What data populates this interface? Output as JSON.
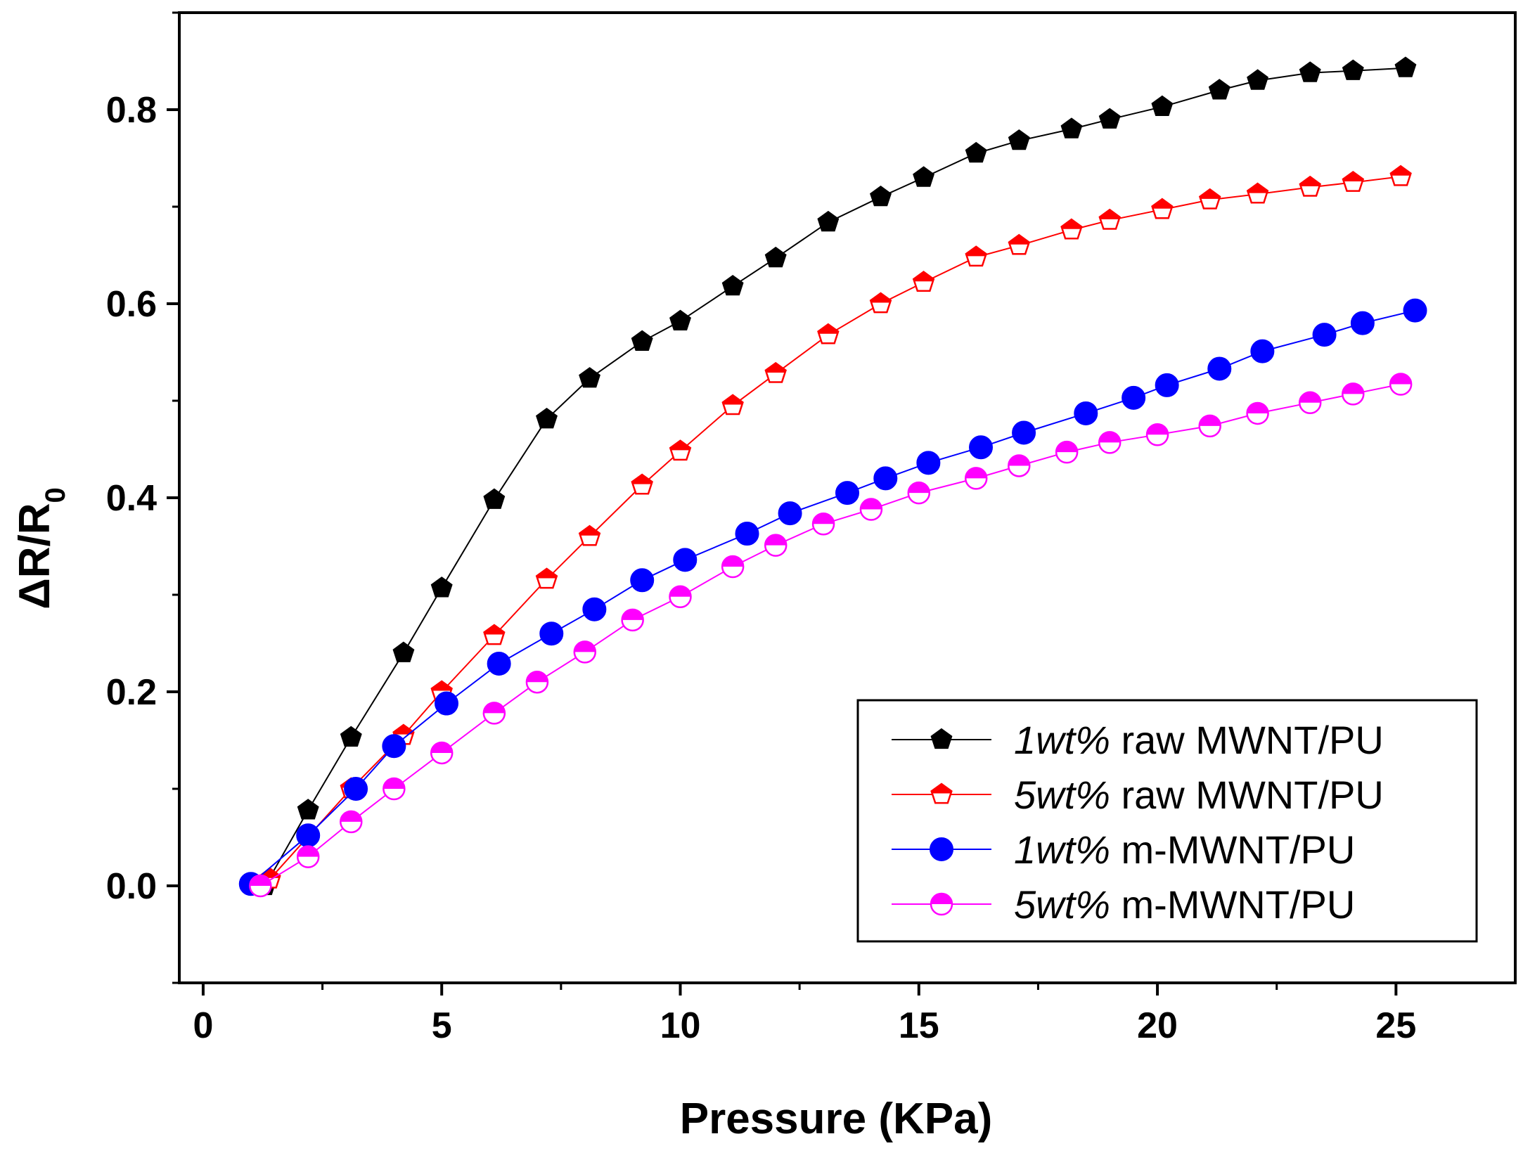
{
  "chart_data": {
    "type": "line",
    "title": "",
    "xlabel": "Pressure (KPa)",
    "ylabel_main": "ΔR/R",
    "ylabel_sub": "0",
    "xlim": [
      -0.5,
      27.5
    ],
    "ylim": [
      -0.1,
      0.9
    ],
    "x_ticks": [
      0,
      5,
      10,
      15,
      20,
      25
    ],
    "x_tick_labels": [
      "0",
      "5",
      "10",
      "15",
      "20",
      "25"
    ],
    "y_ticks": [
      0.0,
      0.2,
      0.4,
      0.6,
      0.8
    ],
    "y_tick_labels": [
      "0.0",
      "0.2",
      "0.4",
      "0.6",
      "0.8"
    ],
    "grid": false,
    "legend_position": "bottom-right",
    "series": [
      {
        "name": "1wt% raw MWNT/PU",
        "legend_em": "1wt%",
        "legend_rest": " raw MWNT/PU",
        "color": "#000000",
        "marker": "pentagon-filled",
        "x": [
          1.3,
          2.2,
          3.1,
          4.2,
          5.0,
          6.1,
          7.2,
          8.1,
          9.2,
          10.0,
          11.1,
          12.0,
          13.1,
          14.2,
          15.1,
          16.2,
          17.1,
          18.2,
          19.0,
          20.1,
          21.3,
          22.1,
          23.2,
          24.1,
          25.2
        ],
        "y": [
          0.0,
          0.078,
          0.153,
          0.24,
          0.307,
          0.398,
          0.481,
          0.523,
          0.561,
          0.582,
          0.618,
          0.647,
          0.684,
          0.71,
          0.73,
          0.755,
          0.768,
          0.78,
          0.79,
          0.803,
          0.82,
          0.83,
          0.838,
          0.84,
          0.843
        ]
      },
      {
        "name": "5wt% raw MWNT/PU",
        "legend_em": "5wt%",
        "legend_rest": " raw MWNT/PU",
        "color": "#ff0000",
        "marker": "pentagon-half",
        "x": [
          1.4,
          3.1,
          4.2,
          5.0,
          6.1,
          7.2,
          8.1,
          9.2,
          10.0,
          11.1,
          12.0,
          13.1,
          14.2,
          15.1,
          16.2,
          17.1,
          18.2,
          19.0,
          20.1,
          21.1,
          22.1,
          23.2,
          24.1,
          25.1
        ],
        "y": [
          0.007,
          0.1,
          0.155,
          0.2,
          0.258,
          0.316,
          0.36,
          0.413,
          0.448,
          0.495,
          0.528,
          0.568,
          0.6,
          0.622,
          0.648,
          0.66,
          0.676,
          0.686,
          0.697,
          0.707,
          0.713,
          0.72,
          0.725,
          0.731
        ]
      },
      {
        "name": "1wt% m-MWNT/PU",
        "legend_em": "1wt%",
        "legend_rest": " m-MWNT/PU",
        "color": "#0000ff",
        "marker": "circle-filled",
        "x": [
          1.0,
          2.2,
          3.2,
          4.0,
          5.1,
          6.2,
          7.3,
          8.2,
          9.2,
          10.1,
          11.4,
          12.3,
          13.5,
          14.3,
          15.2,
          16.3,
          17.2,
          18.5,
          19.5,
          20.2,
          21.3,
          22.2,
          23.5,
          24.3,
          25.4
        ],
        "y": [
          0.002,
          0.052,
          0.1,
          0.144,
          0.188,
          0.229,
          0.26,
          0.285,
          0.315,
          0.336,
          0.363,
          0.384,
          0.405,
          0.42,
          0.436,
          0.452,
          0.467,
          0.487,
          0.503,
          0.516,
          0.533,
          0.551,
          0.568,
          0.58,
          0.593
        ]
      },
      {
        "name": "5wt% m-MWNT/PU",
        "legend_em": "5wt%",
        "legend_rest": " m-MWNT/PU",
        "color": "#ff00ff",
        "marker": "circle-half",
        "x": [
          1.2,
          2.2,
          3.1,
          4.0,
          5.0,
          6.1,
          7.0,
          8.0,
          9.0,
          10.0,
          11.1,
          12.0,
          13.0,
          14.0,
          15.0,
          16.2,
          17.1,
          18.1,
          19.0,
          20.0,
          21.1,
          22.1,
          23.2,
          24.1,
          25.1
        ],
        "y": [
          0.0,
          0.03,
          0.066,
          0.1,
          0.137,
          0.178,
          0.21,
          0.241,
          0.274,
          0.298,
          0.329,
          0.351,
          0.373,
          0.388,
          0.405,
          0.42,
          0.433,
          0.447,
          0.457,
          0.465,
          0.474,
          0.487,
          0.498,
          0.507,
          0.517
        ]
      }
    ]
  }
}
